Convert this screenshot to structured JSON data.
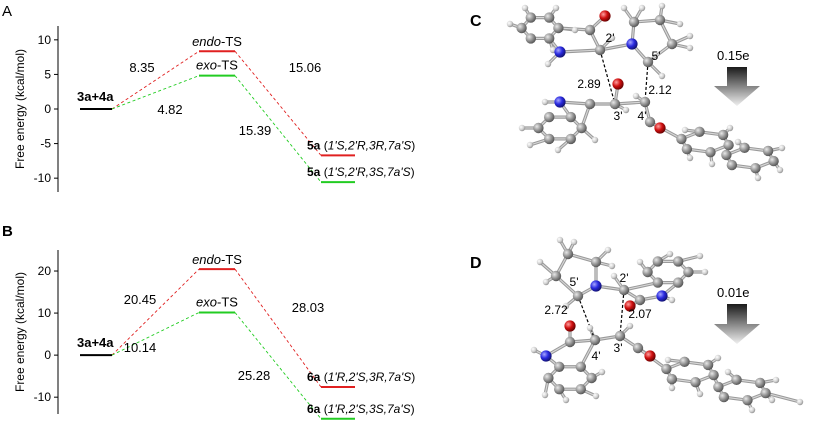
{
  "chart_data": [
    {
      "type": "energy-profile",
      "panel": "A",
      "ylabel": "Free energy (kcal/mol)",
      "ylim": [
        -12,
        12
      ],
      "yticks": [
        "10",
        "5",
        "0",
        "-5",
        "-10"
      ],
      "ytick_values": [
        10,
        5,
        0,
        -5,
        -10
      ],
      "levels": [
        {
          "label_bold": "3a+4a",
          "label_rest": "",
          "value": 0,
          "color": "#000000",
          "stage": 0
        },
        {
          "label_bold": "",
          "label_italic": "endo",
          "label_rest": "-TS",
          "value": 8.35,
          "color": "#e02020",
          "stage": 1
        },
        {
          "label_bold": "",
          "label_italic": "exo",
          "label_rest": "-TS",
          "value": 4.82,
          "color": "#22cc22",
          "stage": 1
        },
        {
          "label_bold": "5a",
          "label_rest": " (",
          "label_italic": "1'S,2'R,3R,7a'S",
          "label_end": ")",
          "value": -6.71,
          "color": "#e02020",
          "stage": 2
        },
        {
          "label_bold": "5a",
          "label_rest": " (",
          "label_italic": "1'S,2'R,3S,7a'S",
          "label_end": ")",
          "value": -10.57,
          "color": "#22cc22",
          "stage": 2
        }
      ],
      "barriers": [
        "8.35",
        "4.82",
        "15.06",
        "15.39"
      ]
    },
    {
      "type": "energy-profile",
      "panel": "B",
      "ylabel": "Free energy (kcal/mol)",
      "ylim": [
        -14,
        25
      ],
      "yticks": [
        "20",
        "10",
        "0",
        "-10"
      ],
      "ytick_values": [
        20,
        10,
        0,
        -10
      ],
      "levels": [
        {
          "label_bold": "3a+4a",
          "label_rest": "",
          "value": 0,
          "color": "#000000",
          "stage": 0
        },
        {
          "label_bold": "",
          "label_italic": "endo",
          "label_rest": "-TS",
          "value": 20.45,
          "color": "#e02020",
          "stage": 1
        },
        {
          "label_bold": "",
          "label_italic": "exo",
          "label_rest": "-TS",
          "value": 10.14,
          "color": "#22cc22",
          "stage": 1
        },
        {
          "label_bold": "6a",
          "label_rest": " (",
          "label_italic": "1'R,2'S,3R,7a'S",
          "label_end": ")",
          "value": -7.58,
          "color": "#e02020",
          "stage": 2
        },
        {
          "label_bold": "6a",
          "label_rest": " (",
          "label_italic": "1'R,2'S,3S,7a'S",
          "label_end": ")",
          "value": -15.14,
          "color": "#22cc22",
          "stage": 2
        }
      ],
      "barriers": [
        "20.45",
        "10.14",
        "28.03",
        "25.28"
      ]
    }
  ],
  "panels": {
    "A": "A",
    "B": "B",
    "C": "C",
    "D": "D"
  },
  "structure_C": {
    "labels": [
      "2'",
      "5'",
      "2.89",
      "2.12",
      "3'",
      "4'"
    ],
    "charge": "0.15e"
  },
  "structure_D": {
    "labels": [
      "5'",
      "2'",
      "2.72",
      "2.07",
      "4'",
      "3'"
    ],
    "charge": "0.01e"
  },
  "colors": {
    "carbon": "#8c8c8c",
    "hydrogen": "#d9d9d9",
    "nitrogen": "#2a2ae0",
    "oxygen": "#d01010"
  }
}
